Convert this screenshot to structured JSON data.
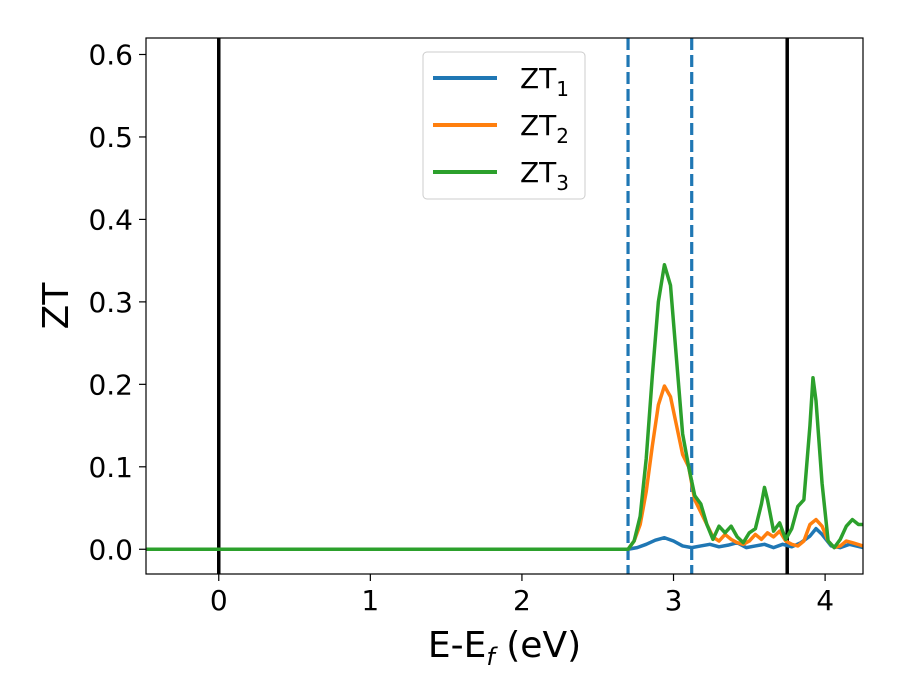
{
  "chart_data": {
    "type": "line",
    "title": "",
    "xlabel": "E-E",
    "xlabel_sub": "f",
    "xlabel_unit": " (eV)",
    "ylabel": "ZT",
    "xlim": [
      -0.48,
      4.25
    ],
    "ylim": [
      -0.03,
      0.62
    ],
    "xticks": [
      0,
      1,
      2,
      3,
      4
    ],
    "xtick_labels": [
      "0",
      "1",
      "2",
      "3",
      "4"
    ],
    "yticks": [
      0.0,
      0.1,
      0.2,
      0.3,
      0.4,
      0.5,
      0.6
    ],
    "ytick_labels": [
      "0.0",
      "0.1",
      "0.2",
      "0.3",
      "0.4",
      "0.5",
      "0.6"
    ],
    "grid": false,
    "legend_position": "top-center",
    "vlines": [
      {
        "x": 0.0,
        "style": "solid",
        "color": "#000000"
      },
      {
        "x": 3.75,
        "style": "solid",
        "color": "#000000"
      },
      {
        "x": 2.7,
        "style": "dashed",
        "color": "#1f77b4"
      },
      {
        "x": 3.12,
        "style": "dashed",
        "color": "#1f77b4"
      }
    ],
    "series": [
      {
        "name": "ZT",
        "name_sub": "1",
        "color": "#1f77b4",
        "x": [
          -0.48,
          2.7,
          2.76,
          2.82,
          2.88,
          2.94,
          3.0,
          3.06,
          3.12,
          3.18,
          3.24,
          3.3,
          3.36,
          3.42,
          3.48,
          3.54,
          3.6,
          3.66,
          3.72,
          3.78,
          3.84,
          3.9,
          3.94,
          3.98,
          4.04,
          4.1,
          4.16,
          4.25
        ],
        "y": [
          0.0,
          0.0,
          0.002,
          0.006,
          0.011,
          0.014,
          0.01,
          0.004,
          0.002,
          0.004,
          0.006,
          0.003,
          0.005,
          0.008,
          0.002,
          0.004,
          0.006,
          0.002,
          0.006,
          0.003,
          0.008,
          0.016,
          0.025,
          0.018,
          0.004,
          0.002,
          0.006,
          0.002
        ]
      },
      {
        "name": "ZT",
        "name_sub": "2",
        "color": "#ff7f0e",
        "x": [
          -0.48,
          2.7,
          2.74,
          2.78,
          2.82,
          2.86,
          2.9,
          2.94,
          2.98,
          3.02,
          3.06,
          3.1,
          3.14,
          3.18,
          3.22,
          3.26,
          3.3,
          3.34,
          3.38,
          3.42,
          3.46,
          3.5,
          3.54,
          3.58,
          3.62,
          3.66,
          3.7,
          3.74,
          3.78,
          3.82,
          3.86,
          3.9,
          3.94,
          3.98,
          4.02,
          4.06,
          4.1,
          4.14,
          4.18,
          4.25
        ],
        "y": [
          0.0,
          0.0,
          0.01,
          0.03,
          0.07,
          0.125,
          0.175,
          0.198,
          0.185,
          0.15,
          0.115,
          0.1,
          0.06,
          0.045,
          0.03,
          0.015,
          0.01,
          0.018,
          0.012,
          0.008,
          0.006,
          0.01,
          0.018,
          0.012,
          0.02,
          0.015,
          0.022,
          0.01,
          0.006,
          0.004,
          0.01,
          0.03,
          0.036,
          0.028,
          0.01,
          0.002,
          0.004,
          0.01,
          0.008,
          0.004
        ]
      },
      {
        "name": "ZT",
        "name_sub": "3",
        "color": "#2ca02c",
        "x": [
          -0.48,
          2.7,
          2.74,
          2.78,
          2.82,
          2.86,
          2.9,
          2.94,
          2.98,
          3.02,
          3.06,
          3.1,
          3.14,
          3.18,
          3.22,
          3.26,
          3.3,
          3.34,
          3.38,
          3.42,
          3.46,
          3.5,
          3.54,
          3.58,
          3.6,
          3.62,
          3.66,
          3.7,
          3.74,
          3.78,
          3.82,
          3.86,
          3.9,
          3.92,
          3.94,
          3.98,
          4.02,
          4.06,
          4.1,
          4.14,
          4.18,
          4.22,
          4.25
        ],
        "y": [
          0.0,
          0.0,
          0.01,
          0.04,
          0.11,
          0.21,
          0.3,
          0.345,
          0.32,
          0.23,
          0.14,
          0.1,
          0.065,
          0.055,
          0.03,
          0.012,
          0.028,
          0.02,
          0.028,
          0.015,
          0.008,
          0.02,
          0.025,
          0.055,
          0.075,
          0.06,
          0.022,
          0.032,
          0.012,
          0.025,
          0.052,
          0.06,
          0.15,
          0.208,
          0.18,
          0.08,
          0.01,
          0.002,
          0.012,
          0.028,
          0.036,
          0.03,
          0.03
        ]
      }
    ]
  }
}
